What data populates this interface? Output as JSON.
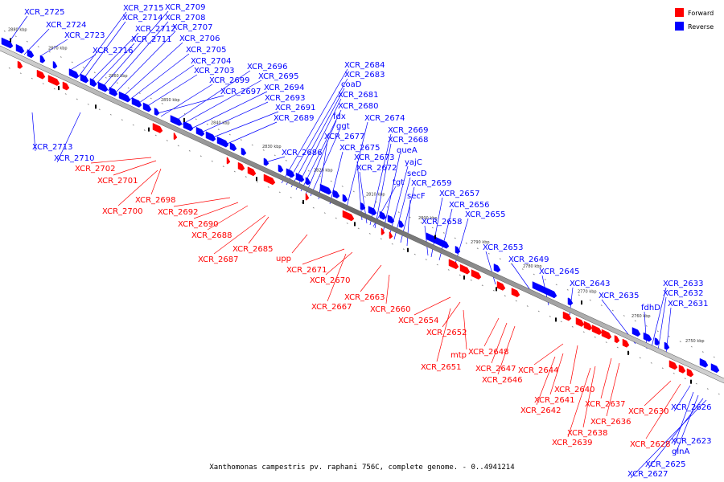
{
  "caption": "Xanthomonas campestris pv. raphani 756C, complete genome. - 0..4941214",
  "legend": [
    {
      "label": "Forward",
      "color": "#ff0000"
    },
    {
      "label": "Reverse",
      "color": "#0000ff"
    }
  ],
  "colors": {
    "forward": "#ff0000",
    "reverse": "#0000ff",
    "backbone": "#7a7a7a"
  },
  "scale_ticks": [
    "2880 kbp",
    "2870 kbp",
    "2860 kbp",
    "2850 kbp",
    "2840 kbp",
    "2830 kbp",
    "2820 kbp",
    "2810 kbp",
    "2800 kbp",
    "2790 kbp",
    "2780 kbp",
    "2770 kbp",
    "2760 kbp",
    "2750 kbp"
  ],
  "reverse_labels": [
    "XCR_2725",
    "XCR_2724",
    "XCR_2723",
    "XCR_2715",
    "XCR_2714",
    "XCR_2712",
    "XCR_2711",
    "XCR_2709",
    "XCR_2708",
    "XCR_2707",
    "XCR_2706",
    "XCR_2716",
    "XCR_2705",
    "XCR_2704",
    "XCR_2703",
    "XCR_2699",
    "XCR_2696",
    "XCR_2695",
    "XCR_2697",
    "XCR_2694",
    "XCR_2693",
    "XCR_2691",
    "XCR_2689",
    "XCR_2713",
    "XCR_2710",
    "XCR_2684",
    "XCR_2683",
    "coaD",
    "XCR_2681",
    "XCR_2680",
    "fdx",
    "ggt",
    "XCR_2677",
    "XCR_2686",
    "XCR_2675",
    "XCR_2674",
    "XCR_2669",
    "XCR_2668",
    "queA",
    "XCR_2673",
    "XCR_2672",
    "yajC",
    "secD",
    "tgt",
    "XCR_2659",
    "secF",
    "XCR_2657",
    "XCR_2656",
    "XCR_2655",
    "XCR_2658",
    "XCR_2653",
    "XCR_2649",
    "XCR_2645",
    "XCR_2643",
    "XCR_2635",
    "fdhD",
    "XCR_2633",
    "XCR_2632",
    "XCR_2631",
    "XCR_2626",
    "XCR_2623",
    "glnA",
    "XCR_2625",
    "XCR_2627"
  ],
  "forward_labels": [
    "XCR_2702",
    "XCR_2701",
    "XCR_2698",
    "XCR_2700",
    "XCR_2692",
    "XCR_2690",
    "XCR_2688",
    "XCR_2685",
    "XCR_2687",
    "upp",
    "XCR_2671",
    "XCR_2670",
    "XCR_2663",
    "XCR_2667",
    "XCR_2660",
    "XCR_2654",
    "XCR_2652",
    "mtp",
    "XCR_2651",
    "XCR_2648",
    "XCR_2647",
    "XCR_2646",
    "XCR_2644",
    "XCR_2640",
    "XCR_2641",
    "XCR_2642",
    "XCR_2637",
    "XCR_2636",
    "XCR_2638",
    "XCR_2639",
    "XCR_2630",
    "XCR_2628"
  ]
}
